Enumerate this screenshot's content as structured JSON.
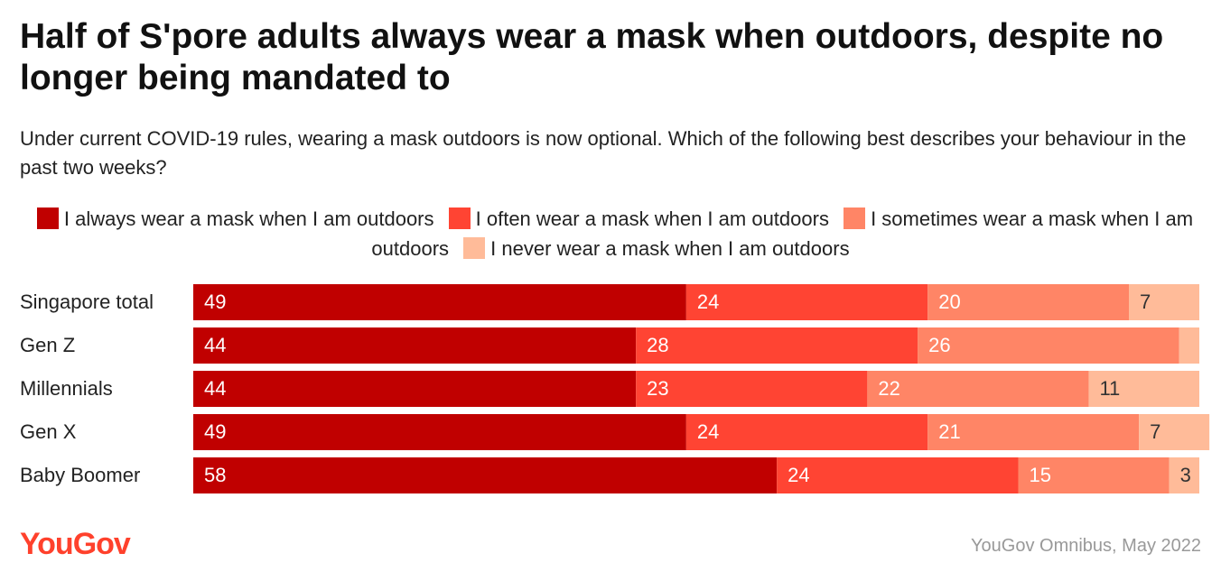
{
  "chart_data": {
    "type": "stacked-bar",
    "title": "Half of S'pore adults always wear a mask when outdoors, despite no longer being mandated to",
    "subtitle": "Under current COVID-19 rules, wearing a mask outdoors is now optional. Which of the following best describes your behaviour in the past two weeks?",
    "categories": [
      "Singapore total",
      "Gen Z",
      "Millennials",
      "Gen X",
      "Baby Boomer"
    ],
    "series": [
      {
        "name": "I always wear a mask when I am outdoors",
        "color": "#c00000",
        "values": [
          49,
          44,
          44,
          49,
          58
        ]
      },
      {
        "name": "I often wear a mask when I am outdoors",
        "color": "#ff4433",
        "values": [
          24,
          28,
          23,
          24,
          24
        ]
      },
      {
        "name": "I sometimes wear a mask when I am outdoors",
        "color": "#ff8566",
        "values": [
          20,
          26,
          22,
          21,
          15
        ]
      },
      {
        "name": "I never wear a mask when I am outdoors",
        "color": "#ffbb99",
        "values": [
          7,
          2,
          11,
          7,
          3
        ],
        "value_labels": [
          "7",
          null,
          "11",
          "7",
          "3"
        ]
      }
    ],
    "xlim": [
      0,
      100
    ],
    "logo": "YouGov",
    "source": "YouGov Omnibus, May 2022"
  }
}
